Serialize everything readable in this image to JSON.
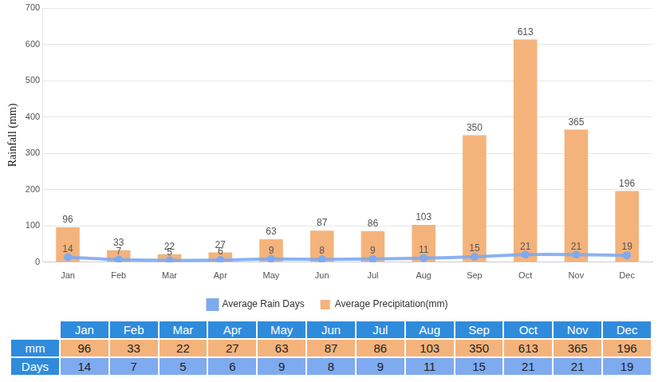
{
  "chart_data": {
    "type": "bar",
    "y_label": "Rainfall (mm)",
    "categories": [
      "Jan",
      "Feb",
      "Mar",
      "Apr",
      "May",
      "Jun",
      "Jul",
      "Aug",
      "Sep",
      "Oct",
      "Nov",
      "Dec"
    ],
    "series": [
      {
        "name": "Average Precipitation(mm)",
        "color": "#f4b37b",
        "values": [
          96,
          33,
          22,
          27,
          63,
          87,
          86,
          103,
          350,
          613,
          365,
          196
        ]
      },
      {
        "name": "Average Rain Days",
        "type": "line",
        "color": "#7eaaf0",
        "marker": "circle",
        "values": [
          14,
          7,
          5,
          6,
          9,
          8,
          9,
          11,
          15,
          21,
          21,
          19
        ]
      }
    ],
    "ylim": [
      0,
      700
    ],
    "yticks": [
      0,
      100,
      200,
      300,
      400,
      500,
      600,
      700
    ],
    "grid": true,
    "legend": "bottom",
    "data_labels": true
  },
  "table": {
    "header": [
      "Jan",
      "Feb",
      "Mar",
      "Apr",
      "May",
      "Jun",
      "Jul",
      "Aug",
      "Sep",
      "Oct",
      "Nov",
      "Dec"
    ],
    "rows": [
      {
        "label": "mm",
        "color": "#f4b37b",
        "values": [
          96,
          33,
          22,
          27,
          63,
          87,
          86,
          103,
          350,
          613,
          365,
          196
        ]
      },
      {
        "label": "Days",
        "color": "#7eaaf0",
        "values": [
          14,
          7,
          5,
          6,
          9,
          8,
          9,
          11,
          15,
          21,
          21,
          19
        ]
      }
    ]
  }
}
